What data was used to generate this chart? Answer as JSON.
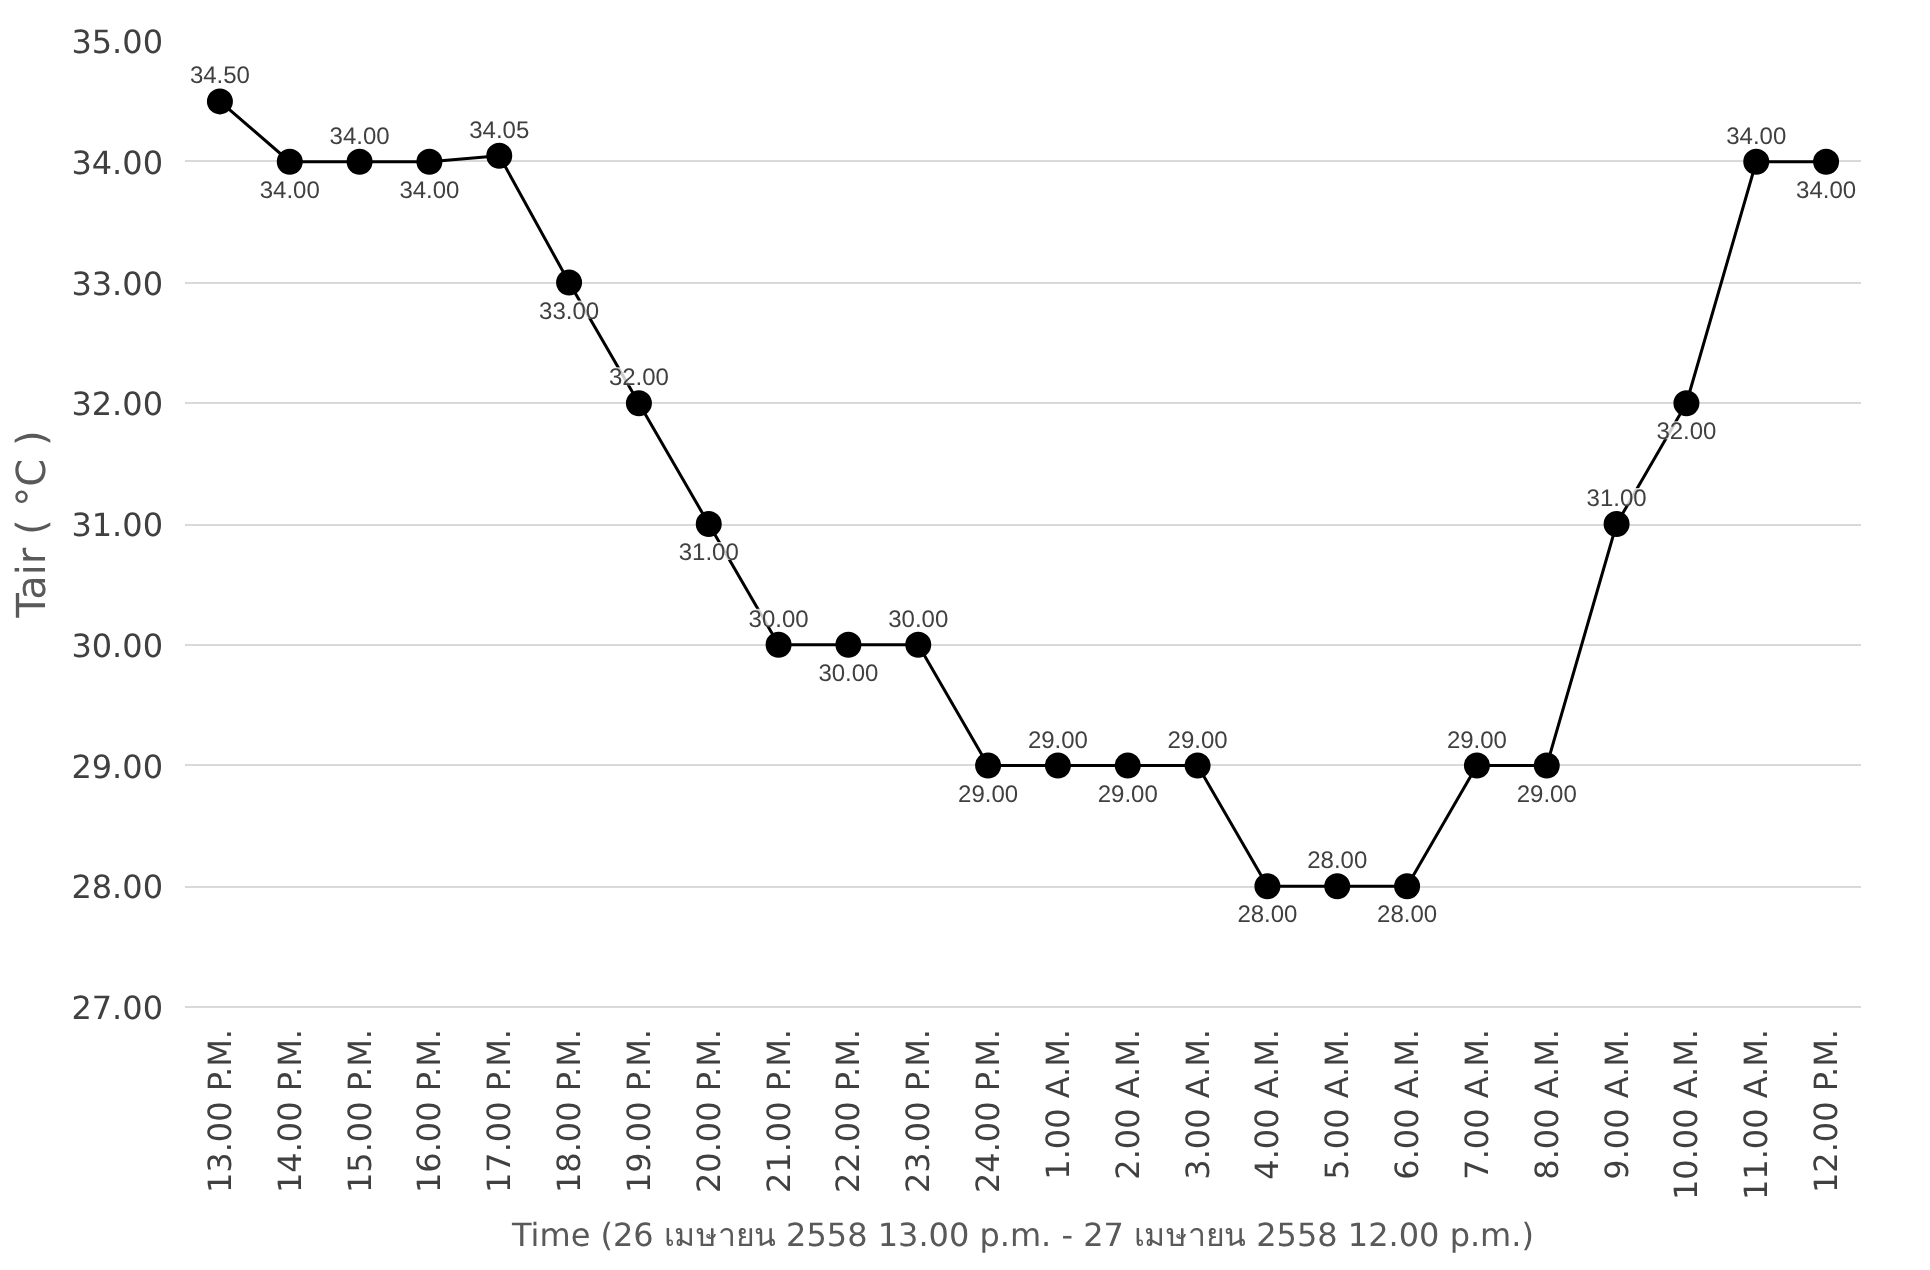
{
  "chart_data": {
    "type": "line",
    "xlabel": "Time (26 เมษายน 2558 13.00 p.m. - 27 เมษายน 2558 12.00 p.m.)",
    "ylabel": "Tair ( °C )",
    "categories": [
      "13.00 P.M.",
      "14.00 P.M.",
      "15.00 P.M.",
      "16.00 P.M.",
      "17.00 P.M.",
      "18.00 P.M.",
      "19.00 P.M.",
      "20.00 P.M.",
      "21.00 P.M.",
      "22.00 P.M.",
      "23.00 P.M.",
      "24.00 P.M.",
      "1.00 A.M.",
      "2.00 A.M.",
      "3.00 A.M.",
      "4.00 A.M.",
      "5.00 A.M.",
      "6.00 A.M.",
      "7.00 A.M.",
      "8.00 A.M.",
      "9.00 A.M.",
      "10.00 A.M.",
      "11.00 A.M.",
      "12.00 P.M."
    ],
    "series": [
      {
        "color": "#000000",
        "values": [
          34.5,
          34,
          34,
          34,
          34.05,
          33,
          32,
          31,
          30,
          30,
          30,
          29,
          29,
          29,
          29,
          28,
          28,
          28,
          29,
          29,
          31,
          32,
          34,
          34
        ],
        "value_labels": [
          "34.50",
          "34.00",
          "34.00",
          "34.00",
          "34.05",
          "33.00",
          "32.00",
          "31.00",
          "30.00",
          "30.00",
          "30.00",
          "29.00",
          "29.00",
          "29.00",
          "29.00",
          "28.00",
          "28.00",
          "28.00",
          "29.00",
          "29.00",
          "31.00",
          "32.00",
          "34.00",
          "34.00"
        ]
      }
    ],
    "ylim": [
      27,
      35
    ],
    "yticks": [
      {
        "value": 27,
        "label": "27.00"
      },
      {
        "value": 28,
        "label": "28.00"
      },
      {
        "value": 29,
        "label": "29.00"
      },
      {
        "value": 30,
        "label": "30.00"
      },
      {
        "value": 31,
        "label": "31.00"
      },
      {
        "value": 32,
        "label": "32.00"
      },
      {
        "value": 33,
        "label": "33.00"
      },
      {
        "value": 34,
        "label": "34.00"
      },
      {
        "value": 35,
        "label": "35.00"
      }
    ],
    "grid": "y",
    "marker": "circle",
    "line_style": "solid"
  }
}
